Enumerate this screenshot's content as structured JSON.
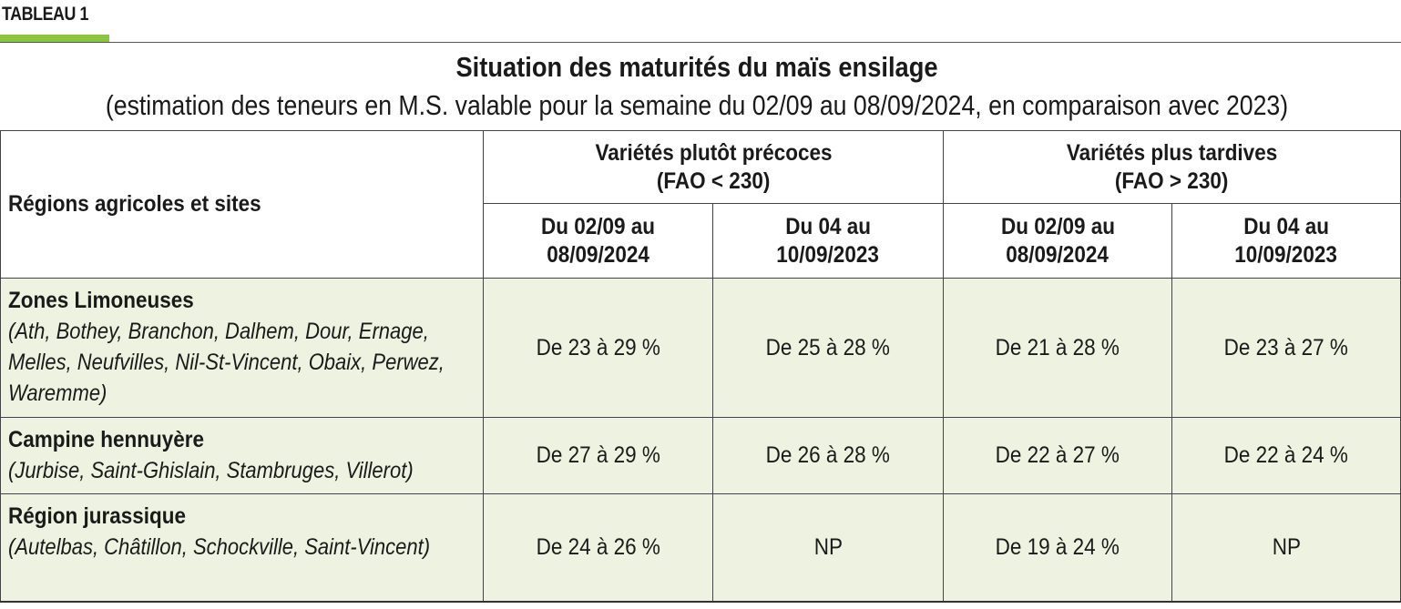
{
  "tag": "TABLEAU 1",
  "accent_color": "#8cc63f",
  "row_background": "#eef3e1",
  "title": "Situation des maturités du maïs ensilage",
  "subtitle": "(estimation des teneurs en M.S. valable pour la semaine du 02/09 au 08/09/2024, en comparaison avec 2023)",
  "table": {
    "region_header": "Régions agricoles et sites",
    "groups": [
      {
        "label": "Variétés plutôt précoces",
        "sub": "(FAO < 230)"
      },
      {
        "label": "Variétés plus tardives",
        "sub": "(FAO > 230)"
      }
    ],
    "periods": [
      {
        "line1": "Du 02/09 au",
        "line2": "08/09/2024"
      },
      {
        "line1": "Du 04 au",
        "line2": "10/09/2023"
      },
      {
        "line1": "Du 02/09 au",
        "line2": "08/09/2024"
      },
      {
        "line1": "Du 04 au",
        "line2": "10/09/2023"
      }
    ],
    "rows": [
      {
        "region": "Zones Limoneuses",
        "sites": "(Ath, Bothey, Branchon, Dalhem, Dour, Ernage, Melles, Neufvilles, Nil-St-Vincent, Obaix, Perwez, Waremme)",
        "values": [
          "De 23 à 29 %",
          "De 25 à 28 %",
          "De 21 à 28 %",
          "De 23 à 27 %"
        ]
      },
      {
        "region": "Campine hennuyère",
        "sites": "(Jurbise, Saint-Ghislain, Stambruges, Villerot)",
        "values": [
          "De 27 à 29 %",
          "De 26 à 28 %",
          "De 22 à 27 %",
          "De 22 à 24 %"
        ]
      },
      {
        "region": "Région jurassique",
        "sites": "(Autelbas, Châtillon, Schockville, Saint-Vincent)",
        "values": [
          "De 24 à 26 %",
          "NP",
          "De 19 à 24 %",
          "NP"
        ]
      }
    ]
  }
}
